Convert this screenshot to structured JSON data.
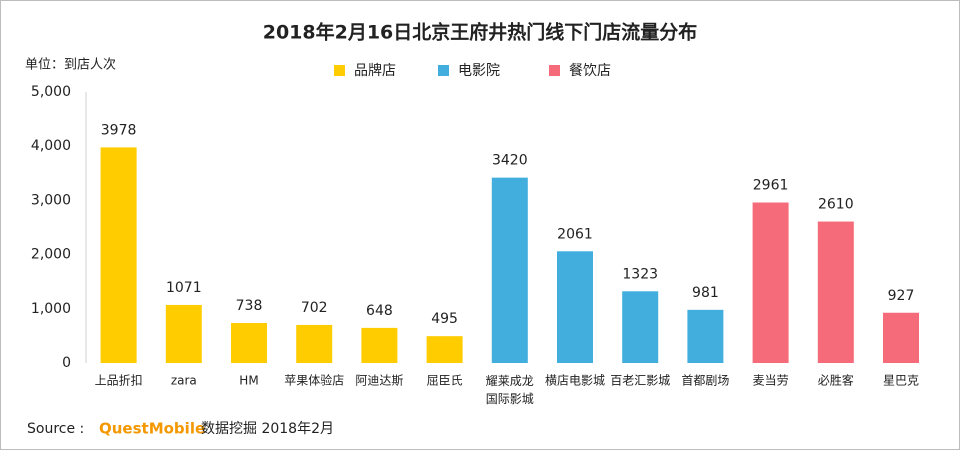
{
  "chart_data": {
    "type": "bar",
    "title": "2018年2月16日北京王府井热门线下门店流量分布",
    "y_label": "单位：到店人次",
    "source_label": "Source :",
    "source_brand": "QuestMobile",
    "source_text": "数据挖掘 2018年2月",
    "categories": [
      "上品折扣",
      "zara",
      "HM",
      "苹果体验店",
      "阿迪达斯",
      "屈臣氏",
      "耀莱成龙国际影城",
      "横店电影城",
      "百老汇影城",
      "首都剧场",
      "麦当劳",
      "必胜客",
      "星巴克"
    ],
    "series": [
      {
        "name": "品牌店",
        "color": "#ffcc00",
        "values": [
          3978,
          1071,
          738,
          702,
          648,
          495,
          null,
          null,
          null,
          null,
          null,
          null,
          null
        ]
      },
      {
        "name": "电影院",
        "color": "#41aede",
        "values": [
          null,
          null,
          null,
          null,
          null,
          null,
          3420,
          2061,
          1323,
          981,
          null,
          null,
          null
        ]
      },
      {
        "name": "餐饮店",
        "color": "#f56b7a",
        "values": [
          null,
          null,
          null,
          null,
          null,
          null,
          null,
          null,
          null,
          null,
          2961,
          2610,
          927
        ]
      }
    ],
    "ylim": [
      0,
      5000
    ],
    "yticks": [
      0,
      {
        "value": 1000,
        "label": "1,000"
      },
      {
        "value": 2000,
        "label": "2,000"
      },
      {
        "value": 3000,
        "label": "3,000"
      },
      {
        "value": 4000,
        "label": "4,000"
      },
      {
        "value": 5000,
        "label": "5,000"
      }
    ],
    "grid": false
  }
}
